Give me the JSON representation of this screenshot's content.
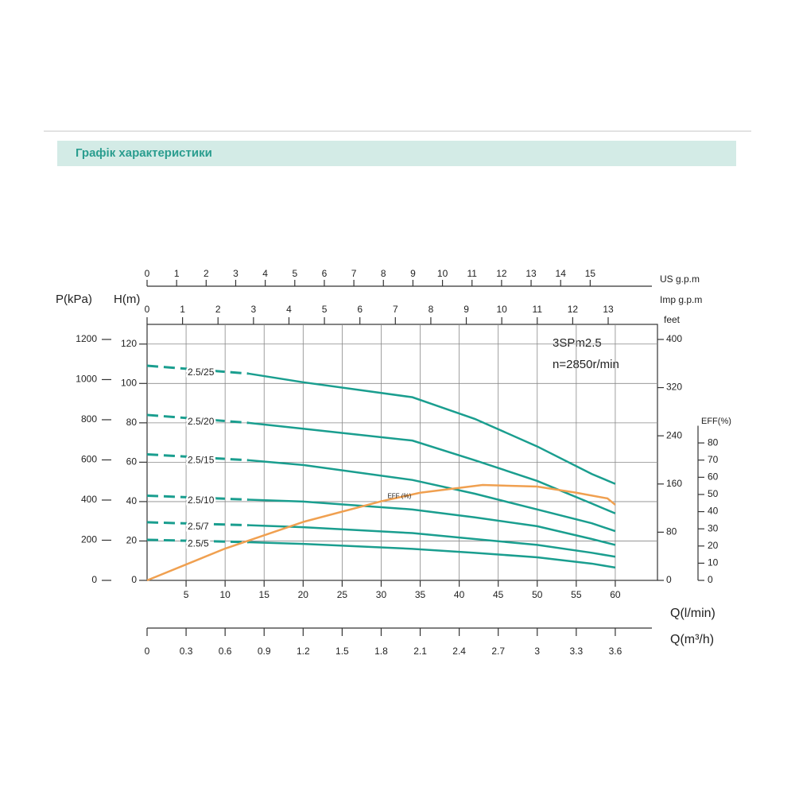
{
  "header": {
    "title": "Графік характеристики"
  },
  "chart_data": {
    "type": "line",
    "annotations": [
      "3SPm2.5",
      "n=2850r/min"
    ],
    "x": [
      0,
      13,
      20,
      34,
      42,
      50,
      57,
      60
    ],
    "xlim": [
      0,
      65
    ],
    "xticks": [
      5,
      10,
      15,
      20,
      25,
      30,
      35,
      40,
      45,
      50,
      55,
      60
    ],
    "xlabel": "Q(l/min)",
    "ylim": [
      0,
      130
    ],
    "yticks": [
      0,
      20,
      40,
      60,
      80,
      100,
      120
    ],
    "ylabel": "H(m)",
    "grid": true,
    "series": [
      {
        "name": "2.5/25",
        "color": "#1a9e8f",
        "values": [
          109,
          105,
          100.6,
          93,
          82,
          68,
          54,
          49
        ]
      },
      {
        "name": "2.5/20",
        "color": "#1a9e8f",
        "values": [
          84,
          80,
          77,
          71,
          61,
          50.5,
          39,
          34
        ]
      },
      {
        "name": "2.5/15",
        "color": "#1a9e8f",
        "values": [
          64,
          61,
          58.6,
          51,
          44,
          36,
          29,
          25
        ]
      },
      {
        "name": "2.5/10",
        "color": "#1a9e8f",
        "values": [
          43,
          41,
          40,
          36,
          32,
          27.5,
          21,
          18
        ]
      },
      {
        "name": "2.5/7",
        "color": "#1a9e8f",
        "values": [
          29.5,
          28,
          27,
          24,
          21,
          18,
          14,
          12
        ]
      },
      {
        "name": "2.5/5",
        "color": "#1a9e8f",
        "values": [
          20.6,
          19.4,
          18.5,
          16,
          14,
          11.7,
          8.5,
          6.5
        ]
      },
      {
        "name": "EFF (%)",
        "color": "#f0a050",
        "axis": "eff",
        "x": [
          0,
          10,
          20,
          30,
          35,
          43,
          50,
          55,
          59,
          60
        ],
        "values": [
          0,
          18.5,
          34,
          46,
          51,
          55.5,
          54.6,
          51,
          47.7,
          44
        ]
      }
    ],
    "axes": [
      {
        "id": "us",
        "position": "top",
        "label": "US g.p.m",
        "lim": [
          0,
          17.17
        ],
        "ticks": [
          0,
          1,
          2,
          3,
          4,
          5,
          6,
          7,
          8,
          9,
          10,
          11,
          12,
          13,
          14,
          15
        ]
      },
      {
        "id": "imp",
        "position": "top-inner",
        "label": "Imp g.p.m",
        "lim": [
          0,
          14.3
        ],
        "ticks": [
          0,
          1,
          2,
          3,
          4,
          5,
          6,
          7,
          8,
          9,
          10,
          11,
          12,
          13
        ]
      },
      {
        "id": "m3h",
        "position": "bottom-outer",
        "label": "Q(m³/h)",
        "lim": [
          0,
          3.9
        ],
        "ticks": [
          0,
          0.3,
          0.6,
          0.9,
          1.2,
          1.5,
          1.8,
          2.1,
          2.4,
          2.7,
          3,
          3.3,
          3.6
        ]
      },
      {
        "id": "p",
        "position": "left-outer",
        "label": "P(kPa)",
        "lim": [
          0,
          1275
        ],
        "ticks": [
          0,
          200,
          400,
          600,
          800,
          1000,
          1200
        ]
      },
      {
        "id": "feet",
        "position": "right",
        "label": "feet",
        "lim": [
          0,
          425
        ],
        "ticks": [
          0,
          80,
          160,
          240,
          320,
          400
        ]
      },
      {
        "id": "eff",
        "position": "right-outer",
        "label": "EFF(%)",
        "lim": [
          0,
          149
        ],
        "ticks": [
          0,
          10,
          20,
          30,
          40,
          50,
          60,
          70,
          80
        ]
      }
    ]
  }
}
